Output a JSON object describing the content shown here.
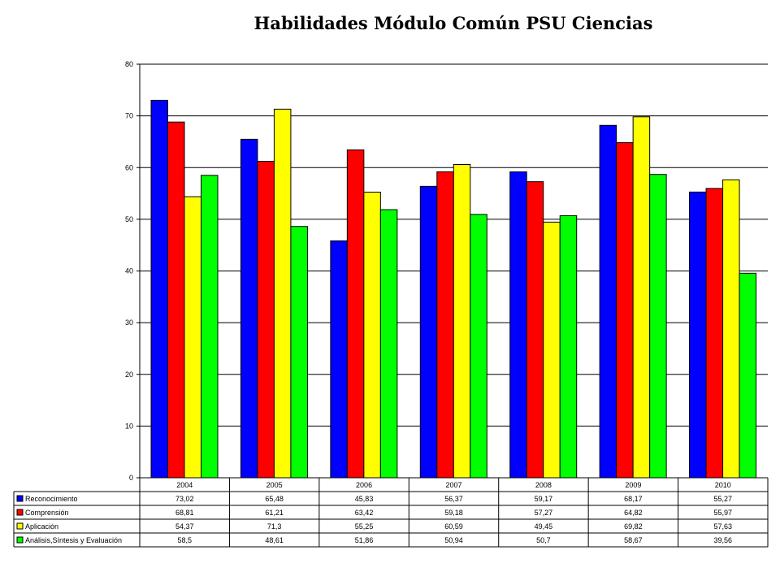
{
  "chart_data": {
    "type": "bar",
    "title": "Habilidades Módulo Común PSU  Ciencias",
    "categories": [
      "2004",
      "2005",
      "2006",
      "2007",
      "2008",
      "2009",
      "2010"
    ],
    "ylim": [
      0,
      80
    ],
    "yticks": [
      "0",
      "10",
      "20",
      "30",
      "40",
      "50",
      "60",
      "70",
      "80"
    ],
    "grid": true,
    "legend_placement": "data-table-left",
    "series": [
      {
        "name": "Reconocimiento",
        "color": "#0000FF",
        "values": [
          73.02,
          65.48,
          45.83,
          56.37,
          59.17,
          68.17,
          55.27
        ],
        "labels": [
          "73,02",
          "65,48",
          "45,83",
          "56,37",
          "59,17",
          "68,17",
          "55,27"
        ]
      },
      {
        "name": "Comprensión",
        "color": "#FF0000",
        "values": [
          68.81,
          61.21,
          63.42,
          59.18,
          57.27,
          64.82,
          55.97
        ],
        "labels": [
          "68,81",
          "61,21",
          "63,42",
          "59,18",
          "57,27",
          "64,82",
          "55,97"
        ]
      },
      {
        "name": "Aplicación",
        "color": "#FFFF00",
        "values": [
          54.37,
          71.3,
          55.25,
          60.59,
          49.45,
          69.82,
          57.63
        ],
        "labels": [
          "54,37",
          "71,3",
          "55,25",
          "60,59",
          "49,45",
          "69,82",
          "57,63"
        ]
      },
      {
        "name": "Análisis,Síntesis y Evaluación",
        "color": "#00FF00",
        "values": [
          58.5,
          48.61,
          51.86,
          50.94,
          50.7,
          58.67,
          39.56
        ],
        "labels": [
          "58,5",
          "48,61",
          "51,86",
          "50,94",
          "50,7",
          "58,67",
          "39,56"
        ]
      }
    ]
  }
}
